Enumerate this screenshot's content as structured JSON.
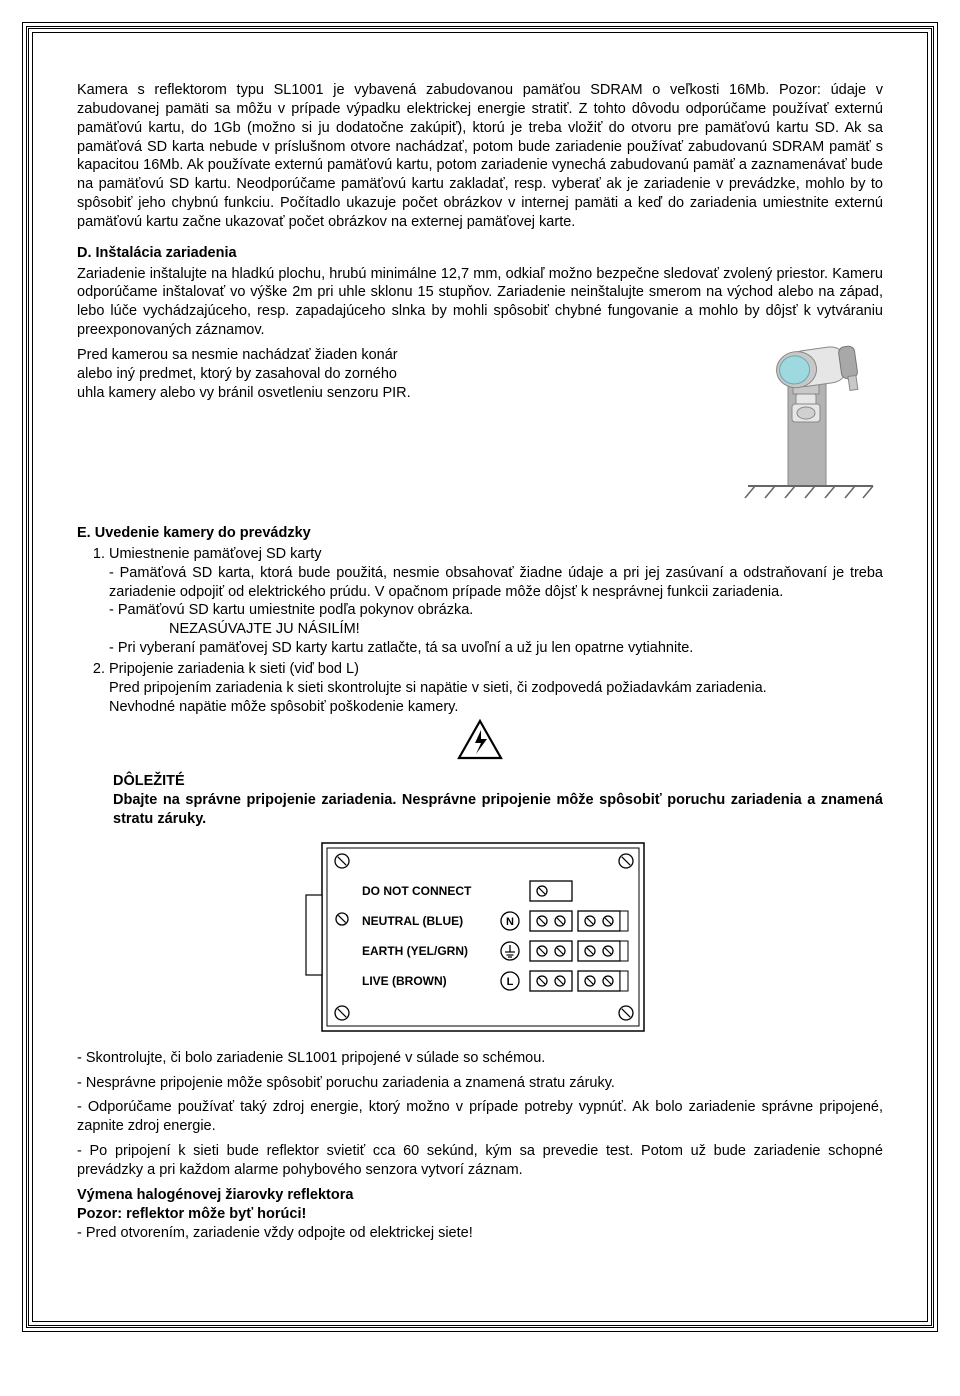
{
  "colors": {
    "text": "#000000",
    "background": "#ffffff",
    "border": "#000000",
    "camera_lens": "#9fd9e0",
    "camera_body_light": "#e6e6e6",
    "camera_body_mid": "#c8c8c8",
    "camera_body_dark": "#a8a8a8",
    "post_color": "#b3b3b3",
    "ground_line": "#666666"
  },
  "intro": "Kamera s reflektorom typu SL1001 je vybavená zabudovanou pamäťou SDRAM o veľkosti 16Mb. Pozor: údaje v zabudovanej pamäti sa môžu v prípade výpadku elektrickej energie stratiť. Z tohto dôvodu odporúčame používať externú pamäťovú kartu, do 1Gb (možno si ju dodatočne zakúpiť), ktorú je treba vložiť do otvoru pre pamäťovú kartu SD. Ak sa pamäťová SD karta nebude v príslušnom otvore nachádzať, potom bude zariadenie používať zabudovanú  SDRAM pamäť s kapacitou 16Mb. Ak používate externú pamäťovú kartu, potom zariadenie vynechá zabudovanú pamäť a zaznamenávať bude na pamäťovú SD kartu. Neodporúčame pamäťovú kartu zakladať, resp. vyberať ak je zariadenie v prevádzke, mohlo by to spôsobiť jeho chybnú funkciu. Počítadlo ukazuje počet obrázkov v internej pamäti a keď do zariadenia umiestnite externú pamäťovú kartu začne ukazovať počet obrázkov na externej pamäťovej karte.",
  "sectionD": {
    "title": "D. Inštalácia zariadenia",
    "p1": "Zariadenie inštalujte na hladkú plochu, hrubú minimálne 12,7 mm, odkiaľ možno bezpečne sledovať zvolený priestor. Kameru odporúčame inštalovať vo výške 2m pri uhle sklonu 15 stupňov. Zariadenie neinštalujte smerom na východ alebo na západ, lebo lúče vychádzajúceho, resp. zapadajúceho slnka by mohli spôsobiť chybné fungovanie a mohlo by dôjsť k vytváraniu preexponovaných záznamov.",
    "p2a": "Pred kamerou sa nesmie nachádzať žiaden konár",
    "p2b": "alebo iný predmet, ktorý by zasahoval do zorného",
    "p2c": "uhla kamery alebo vy bránil osvetleniu senzoru PIR."
  },
  "sectionE": {
    "title": "E. Uvedenie kamery do prevádzky",
    "item1_title": "Umiestnenie pamäťovej SD karty",
    "item1_a": "- Pamäťová SD karta, ktorá bude použitá, nesmie obsahovať žiadne údaje a pri jej zasúvaní a odstraňovaní je treba zariadenie odpojiť od elektrického prúdu. V opačnom prípade môže dôjsť k nesprávnej funkcii zariadenia.",
    "item1_b": "- Pamäťovú SD kartu umiestnite podľa pokynov obrázka.",
    "item1_c": "NEZASÚVAJTE JU NÁSILÍM!",
    "item1_d": "- Pri vyberaní pamäťovej SD karty kartu zatlačte, tá sa uvoľní a už ju len opatrne vytiahnite.",
    "item2_title": "Pripojenie zariadenia k sieti (viď bod L)",
    "item2_a": "Pred pripojením zariadenia k sieti skontrolujte si napätie v sieti, či zodpovedá požiadavkám zariadenia.",
    "item2_b": "Nevhodné napätie môže spôsobiť poškodenie kamery.",
    "important_label": "DÔLEŽITÉ",
    "important_text": "Dbajte na správne pripojenie zariadenia. Nesprávne pripojenie môže spôsobiť poruchu zariadenia a znamená stratu záruky."
  },
  "wiring": {
    "labels": [
      "DO NOT CONNECT",
      "NEUTRAL (BLUE)",
      "EARTH (YEL/GRN)",
      "LIVE (BROWN)"
    ],
    "symbols": [
      "",
      "N",
      "⏚",
      "L"
    ],
    "box_border": "#000000",
    "box_bg": "#ffffff",
    "label_fontsize": 12
  },
  "footnotes": {
    "n1": "- Skontrolujte, či bolo zariadenie SL1001 pripojené v súlade so schémou.",
    "n2": "- Nesprávne pripojenie môže spôsobiť poruchu zariadenia a znamená stratu záruky.",
    "n3": "- Odporúčame používať taký zdroj energie, ktorý možno v prípade potreby vypnúť. Ak bolo zariadenie správne pripojené, zapnite zdroj energie.",
    "n4": "- Po pripojení k sieti bude reflektor svietiť cca 60 sekúnd, kým sa prevedie test. Potom už bude zariadenie schopné prevádzky a pri každom alarme pohybového senzora vytvorí záznam.",
    "b1": "Výmena halogénovej žiarovky reflektora",
    "b2": "Pozor: reflektor môže byť horúci!",
    "n5": "- Pred otvorením, zariadenie vždy odpojte od elektrickej siete!"
  }
}
